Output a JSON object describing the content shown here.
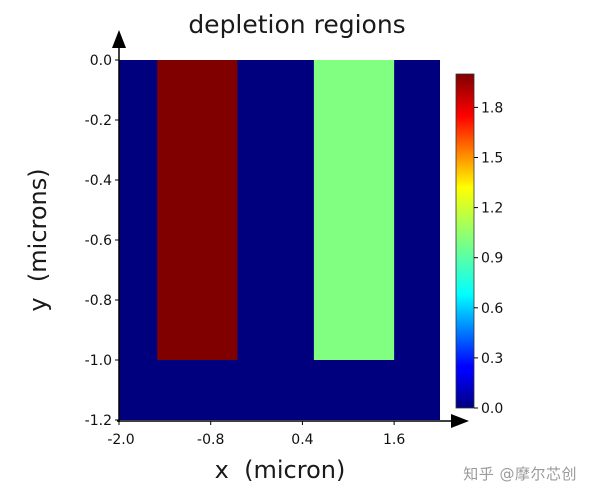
{
  "watermark": "知乎 @摩尔芯创",
  "chart_data": {
    "type": "heatmap",
    "title": "depletion regions",
    "xlabel": "x  (micron)",
    "ylabel": "y  (microns)",
    "xlim": [
      -2.0,
      2.2
    ],
    "ylim": [
      -1.2,
      0.0
    ],
    "y_inverted": true,
    "x_ticks": [
      "-2.0",
      "-0.8",
      "0.4",
      "1.6"
    ],
    "x_tick_values": [
      -2.0,
      -0.8,
      0.4,
      1.6
    ],
    "y_ticks": [
      "0.0",
      "-0.2",
      "-0.4",
      "-0.6",
      "-0.8",
      "-1.0",
      "-1.2"
    ],
    "y_tick_values": [
      0.0,
      -0.2,
      -0.4,
      -0.6,
      -0.8,
      -1.0,
      -1.2
    ],
    "background_value": 0.0,
    "background_color": "#00007f",
    "regions": [
      {
        "x": [
          -1.5,
          -0.45
        ],
        "y": [
          0.0,
          -1.0
        ],
        "value": 2.0,
        "color": "#800000"
      },
      {
        "x": [
          0.55,
          1.6
        ],
        "y": [
          0.0,
          -1.0
        ],
        "value": 1.0,
        "color": "#80ff80"
      }
    ],
    "colorbar": {
      "range": [
        0.0,
        2.0
      ],
      "ticks": [
        "0.0",
        "0.3",
        "0.6",
        "0.9",
        "1.2",
        "1.5",
        "1.8"
      ],
      "tick_values": [
        0.0,
        0.3,
        0.6,
        0.9,
        1.2,
        1.5,
        1.8
      ],
      "colormap": "jet"
    }
  }
}
